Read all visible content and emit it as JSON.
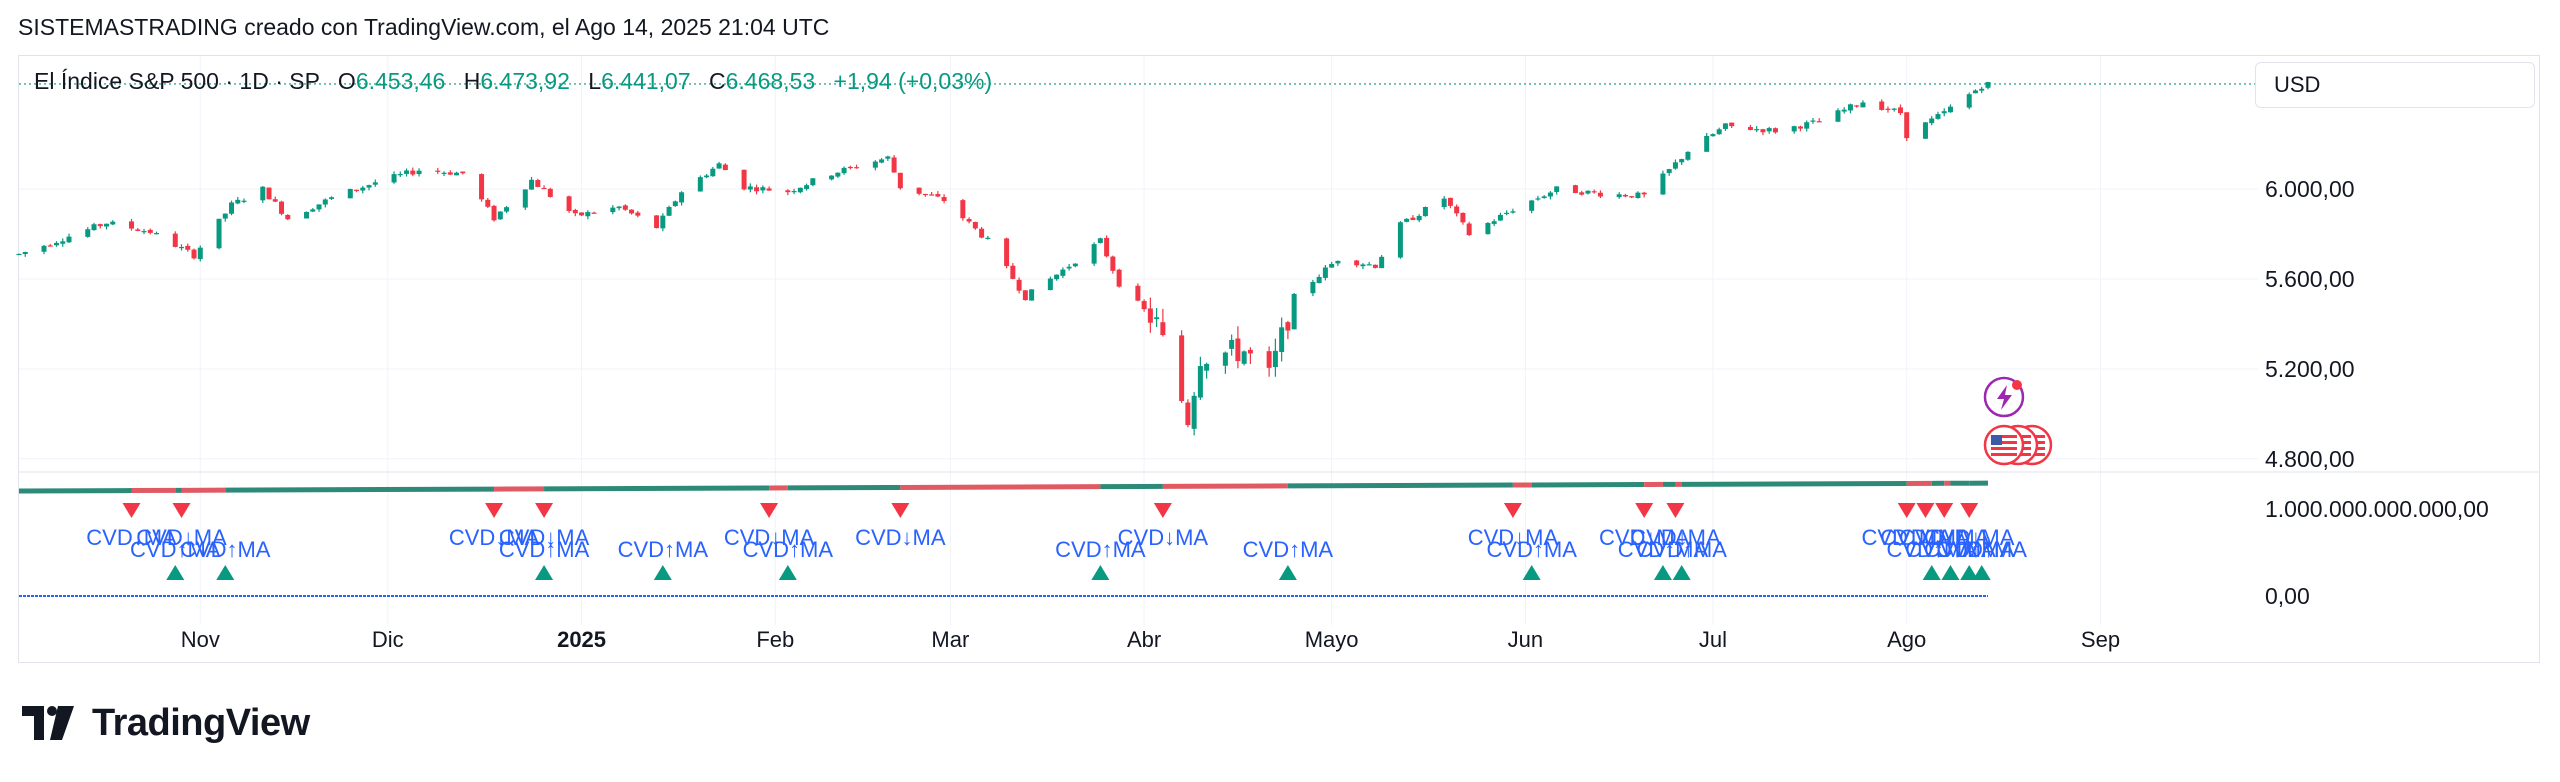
{
  "header": {
    "caption": "SISTEMASTRADING creado con TradingView.com, el Ago 14, 2025 21:04 UTC"
  },
  "legend": {
    "symbol": "El Índice S&P 500 · 1D · SP",
    "o_label": "O",
    "o_value": "6.453,46",
    "h_label": "H",
    "h_value": "6.473,92",
    "l_label": "L",
    "l_value": "6.441,07",
    "c_label": "C",
    "c_value": "6.468,53",
    "change": "+1,94 (+0,03%)"
  },
  "currency_button": {
    "label": "USD"
  },
  "brand": {
    "name": "TradingView",
    "logo_icon": "tradingview-logo-icon"
  },
  "colors": {
    "up": "#089981",
    "down": "#f23645",
    "cvd_line": "#2962ff",
    "label": "#2962ff"
  },
  "chart_data": {
    "type": "candlestick",
    "price_axis": {
      "ticks": [
        6000,
        5600,
        5200,
        4800
      ],
      "tick_labels": [
        "6.000,00",
        "5.600,00",
        "5.200,00",
        "4.800,00"
      ],
      "range": [
        4750,
        6530
      ]
    },
    "indicator_axis": {
      "tick_labels": [
        "1.000.000.000.000,00",
        "0,00"
      ]
    },
    "x_ticks": [
      {
        "label": "Nov",
        "date": "2024-11-01"
      },
      {
        "label": "Dic",
        "date": "2024-12-01"
      },
      {
        "label": "2025",
        "date": "2025-01-01",
        "bold": true
      },
      {
        "label": "Feb",
        "date": "2025-02-01"
      },
      {
        "label": "Mar",
        "date": "2025-03-01"
      },
      {
        "label": "Abr",
        "date": "2025-04-01"
      },
      {
        "label": "Mayo",
        "date": "2025-05-01"
      },
      {
        "label": "Jun",
        "date": "2025-06-01"
      },
      {
        "label": "Jul",
        "date": "2025-07-01"
      },
      {
        "label": "Ago",
        "date": "2025-08-01"
      },
      {
        "label": "Sep",
        "date": "2025-09-01"
      }
    ],
    "date_range": [
      "2024-10-03",
      "2025-09-23"
    ],
    "price_path": [
      [
        "2024-10-03",
        5710
      ],
      [
        "2024-10-10",
        5780
      ],
      [
        "2024-10-17",
        5850
      ],
      [
        "2024-10-24",
        5810
      ],
      [
        "2024-10-31",
        5705
      ],
      [
        "2024-11-06",
        5930
      ],
      [
        "2024-11-11",
        6000
      ],
      [
        "2024-11-15",
        5870
      ],
      [
        "2024-11-22",
        5960
      ],
      [
        "2024-11-29",
        6030
      ],
      [
        "2024-12-06",
        6085
      ],
      [
        "2024-12-13",
        6070
      ],
      [
        "2024-12-18",
        5870
      ],
      [
        "2024-12-24",
        6040
      ],
      [
        "2024-12-31",
        5880
      ],
      [
        "2025-01-07",
        5920
      ],
      [
        "2025-01-13",
        5830
      ],
      [
        "2025-01-17",
        5990
      ],
      [
        "2025-01-23",
        6110
      ],
      [
        "2025-01-27",
        6010
      ],
      [
        "2025-02-03",
        5990
      ],
      [
        "2025-02-10",
        6070
      ],
      [
        "2025-02-19",
        6140
      ],
      [
        "2025-02-21",
        6010
      ],
      [
        "2025-02-28",
        5950
      ],
      [
        "2025-03-07",
        5770
      ],
      [
        "2025-03-13",
        5520
      ],
      [
        "2025-03-20",
        5660
      ],
      [
        "2025-03-25",
        5770
      ],
      [
        "2025-03-28",
        5580
      ],
      [
        "2025-04-03",
        5400
      ],
      [
        "2025-04-08",
        4980
      ],
      [
        "2025-04-10",
        5260
      ],
      [
        "2025-04-17",
        5280
      ],
      [
        "2025-04-21",
        5160
      ],
      [
        "2025-04-25",
        5520
      ],
      [
        "2025-05-02",
        5690
      ],
      [
        "2025-05-08",
        5660
      ],
      [
        "2025-05-12",
        5840
      ],
      [
        "2025-05-19",
        5960
      ],
      [
        "2025-05-23",
        5800
      ],
      [
        "2025-05-30",
        5910
      ],
      [
        "2025-06-06",
        6000
      ],
      [
        "2025-06-13",
        5980
      ],
      [
        "2025-06-20",
        5970
      ],
      [
        "2025-06-27",
        6170
      ],
      [
        "2025-07-03",
        6280
      ],
      [
        "2025-07-11",
        6260
      ],
      [
        "2025-07-18",
        6300
      ],
      [
        "2025-07-25",
        6390
      ],
      [
        "2025-07-31",
        6340
      ],
      [
        "2025-08-01",
        6240
      ],
      [
        "2025-08-07",
        6340
      ],
      [
        "2025-08-13",
        6460
      ],
      [
        "2025-08-14",
        6468
      ]
    ],
    "signals": [
      {
        "date": "2024-10-21",
        "dir": "down",
        "label": "CVD↓MA"
      },
      {
        "date": "2024-10-29",
        "dir": "down",
        "label": "CVD↓MA"
      },
      {
        "date": "2024-10-28",
        "dir": "up",
        "label": "CVD↑MA"
      },
      {
        "date": "2024-11-05",
        "dir": "up",
        "label": "CVD↑MA"
      },
      {
        "date": "2024-12-18",
        "dir": "down",
        "label": "CVD↓MA"
      },
      {
        "date": "2024-12-26",
        "dir": "down",
        "label": "CVD↓MA"
      },
      {
        "date": "2024-12-26",
        "dir": "up",
        "label": "CVD↑MA"
      },
      {
        "date": "2025-01-14",
        "dir": "up",
        "label": "CVD↑MA"
      },
      {
        "date": "2025-01-31",
        "dir": "down",
        "label": "CVD↓MA"
      },
      {
        "date": "2025-02-03",
        "dir": "up",
        "label": "CVD↑MA"
      },
      {
        "date": "2025-02-21",
        "dir": "down",
        "label": "CVD↓MA"
      },
      {
        "date": "2025-03-25",
        "dir": "up",
        "label": "CVD↑MA"
      },
      {
        "date": "2025-04-04",
        "dir": "down",
        "label": "CVD↓MA"
      },
      {
        "date": "2025-04-24",
        "dir": "up",
        "label": "CVD↑MA"
      },
      {
        "date": "2025-05-30",
        "dir": "down",
        "label": "CVD↓MA"
      },
      {
        "date": "2025-06-02",
        "dir": "up",
        "label": "CVD↑MA"
      },
      {
        "date": "2025-06-20",
        "dir": "down",
        "label": "CVD↓MA"
      },
      {
        "date": "2025-06-25",
        "dir": "down",
        "label": "CVD↓MA"
      },
      {
        "date": "2025-06-23",
        "dir": "up",
        "label": "CVD↑MA"
      },
      {
        "date": "2025-06-26",
        "dir": "up",
        "label": "CVD↑MA"
      },
      {
        "date": "2025-08-01",
        "dir": "down",
        "label": "CVD↓MA"
      },
      {
        "date": "2025-08-04",
        "dir": "down",
        "label": "CVD↓MA"
      },
      {
        "date": "2025-08-07",
        "dir": "down",
        "label": "CVD↓MA"
      },
      {
        "date": "2025-08-11",
        "dir": "down",
        "label": "CVD↓MA"
      },
      {
        "date": "2025-08-05",
        "dir": "up",
        "label": "CVD↑MA"
      },
      {
        "date": "2025-08-08",
        "dir": "up",
        "label": "CVD↑MA"
      },
      {
        "date": "2025-08-11",
        "dir": "up",
        "label": "CVD↑MA"
      },
      {
        "date": "2025-08-13",
        "dir": "up",
        "label": "CVD↑MA"
      }
    ],
    "event_icons": [
      {
        "name": "lightning-icon",
        "date": "2025-08-14"
      },
      {
        "name": "us-flag-icon",
        "date": "2025-08-14"
      }
    ]
  }
}
